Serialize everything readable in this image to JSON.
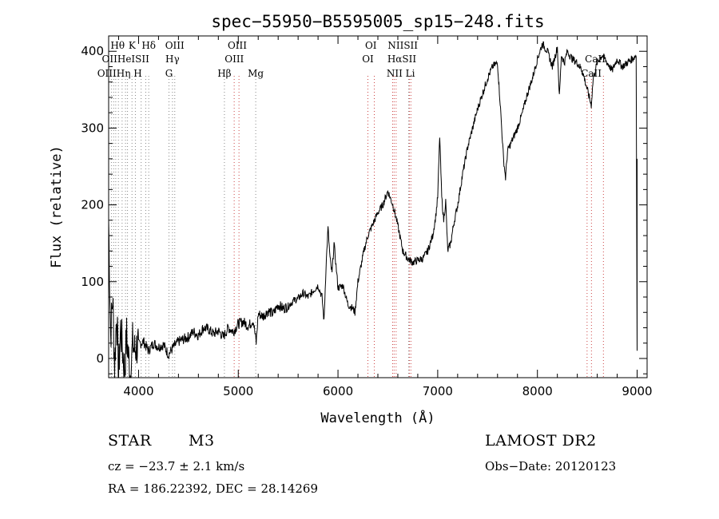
{
  "chart_data": {
    "type": "line",
    "title": "spec−55950−B5595005_sp15−248.fits",
    "xlabel": "Wavelength (Å)",
    "ylabel": "Flux (relative)",
    "xlim": [
      3700,
      9100
    ],
    "ylim": [
      -25,
      420
    ],
    "xticks": [
      4000,
      5000,
      6000,
      7000,
      8000,
      9000
    ],
    "yticks": [
      0,
      100,
      200,
      300,
      400
    ],
    "grid": false,
    "series": [
      {
        "x": [
          3700,
          3720,
          3740,
          3760,
          3780,
          3800,
          3820,
          3840,
          3860,
          3880,
          3900,
          3920,
          3940,
          3960,
          3980,
          4000,
          4050,
          4100,
          4150,
          4200,
          4250,
          4300,
          4350,
          4400,
          4450,
          4500,
          4550,
          4600,
          4650,
          4700,
          4750,
          4800,
          4850,
          4900,
          4950,
          5000,
          5050,
          5100,
          5150,
          5180,
          5200,
          5250,
          5300,
          5350,
          5400,
          5450,
          5500,
          5550,
          5600,
          5650,
          5700,
          5750,
          5800,
          5840,
          5860,
          5880,
          5900,
          5920,
          5940,
          5960,
          6000,
          6050,
          6100,
          6150,
          6170,
          6200,
          6230,
          6260,
          6300,
          6350,
          6400,
          6450,
          6500,
          6550,
          6580,
          6620,
          6650,
          6700,
          6750,
          6800,
          6850,
          6900,
          6950,
          6980,
          7000,
          7020,
          7040,
          7060,
          7080,
          7100,
          7130,
          7160,
          7200,
          7250,
          7300,
          7350,
          7400,
          7450,
          7500,
          7550,
          7600,
          7630,
          7660,
          7680,
          7700,
          7750,
          7800,
          7850,
          7900,
          7950,
          8000,
          8050,
          8100,
          8150,
          8200,
          8220,
          8240,
          8270,
          8300,
          8350,
          8400,
          8450,
          8500,
          8540,
          8560,
          8600,
          8650,
          8700,
          8750,
          8800,
          8850,
          8900,
          8950,
          8990,
          9000
        ],
        "y": [
          180,
          30,
          80,
          -10,
          60,
          -20,
          40,
          10,
          -15,
          30,
          0,
          -25,
          20,
          10,
          15,
          18,
          22,
          10,
          20,
          15,
          18,
          5,
          15,
          22,
          25,
          28,
          35,
          30,
          40,
          38,
          32,
          36,
          28,
          40,
          35,
          45,
          48,
          42,
          50,
          20,
          58,
          55,
          62,
          58,
          70,
          65,
          68,
          75,
          78,
          85,
          80,
          88,
          95,
          80,
          48,
          120,
          170,
          130,
          110,
          150,
          92,
          95,
          70,
          65,
          60,
          100,
          120,
          140,
          160,
          175,
          190,
          200,
          218,
          200,
          185,
          160,
          140,
          130,
          125,
          128,
          130,
          140,
          160,
          185,
          210,
          290,
          210,
          180,
          205,
          140,
          150,
          175,
          200,
          240,
          275,
          300,
          325,
          345,
          365,
          380,
          385,
          325,
          260,
          235,
          270,
          285,
          300,
          320,
          345,
          365,
          390,
          410,
          400,
          380,
          405,
          340,
          395,
          385,
          400,
          390,
          385,
          375,
          350,
          330,
          365,
          385,
          395,
          385,
          375,
          390,
          380,
          385,
          390,
          395,
          10
        ]
      }
    ],
    "lines": [
      {
        "x": 3727,
        "color": "#888888"
      },
      {
        "x": 3750,
        "color": "#888888"
      },
      {
        "x": 3771,
        "color": "#888888"
      },
      {
        "x": 3798,
        "color": "#888888"
      },
      {
        "x": 3835,
        "color": "#888888"
      },
      {
        "x": 3869,
        "color": "#888888"
      },
      {
        "x": 3889,
        "color": "#888888"
      },
      {
        "x": 3934,
        "color": "#888888"
      },
      {
        "x": 3968,
        "color": "#888888"
      },
      {
        "x": 4026,
        "color": "#888888"
      },
      {
        "x": 4072,
        "color": "#888888"
      },
      {
        "x": 4102,
        "color": "#888888"
      },
      {
        "x": 4305,
        "color": "#888888"
      },
      {
        "x": 4340,
        "color": "#888888"
      },
      {
        "x": 4363,
        "color": "#888888"
      },
      {
        "x": 4861,
        "color": "#888888"
      },
      {
        "x": 4959,
        "color": "#cc4444"
      },
      {
        "x": 5007,
        "color": "#cc4444"
      },
      {
        "x": 5175,
        "color": "#888888"
      },
      {
        "x": 6300,
        "color": "#cc4444"
      },
      {
        "x": 6364,
        "color": "#cc4444"
      },
      {
        "x": 6548,
        "color": "#cc4444"
      },
      {
        "x": 6563,
        "color": "#cc4444"
      },
      {
        "x": 6583,
        "color": "#cc4444"
      },
      {
        "x": 6708,
        "color": "#888888"
      },
      {
        "x": 6716,
        "color": "#cc4444"
      },
      {
        "x": 6731,
        "color": "#cc4444"
      },
      {
        "x": 8498,
        "color": "#cc4444"
      },
      {
        "x": 8542,
        "color": "#cc4444"
      },
      {
        "x": 8662,
        "color": "#cc4444"
      }
    ],
    "annotations": [
      {
        "text": "Hθ",
        "x": 3790,
        "row": 0
      },
      {
        "text": "K",
        "x": 3935,
        "row": 0
      },
      {
        "text": "Hδ",
        "x": 4102,
        "row": 0
      },
      {
        "text": "OIII",
        "x": 4363,
        "row": 0
      },
      {
        "text": "OIII",
        "x": 4990,
        "row": 0
      },
      {
        "text": "OI",
        "x": 6330,
        "row": 0
      },
      {
        "text": "NIISII",
        "x": 6650,
        "row": 0
      },
      {
        "text": "OIIHeISII",
        "x": 3870,
        "row": 1
      },
      {
        "text": "Hγ",
        "x": 4340,
        "row": 1
      },
      {
        "text": "OIII",
        "x": 4960,
        "row": 1
      },
      {
        "text": "OI",
        "x": 6300,
        "row": 1
      },
      {
        "text": "HαSII",
        "x": 6640,
        "row": 1
      },
      {
        "text": "CaII",
        "x": 8580,
        "row": 1
      },
      {
        "text": "OIIIHη H",
        "x": 3810,
        "row": 2
      },
      {
        "text": "G",
        "x": 4305,
        "row": 2
      },
      {
        "text": "Hβ",
        "x": 4861,
        "row": 2
      },
      {
        "text": "Mg",
        "x": 5175,
        "row": 2
      },
      {
        "text": "NII Li",
        "x": 6630,
        "row": 2
      },
      {
        "text": "CaII",
        "x": 8540,
        "row": 2
      }
    ]
  },
  "info": {
    "object_type": "STAR",
    "subclass": "M3",
    "survey": "LAMOST DR2",
    "redshift": "cz = −23.7 ± 2.1 km/s",
    "obs_date": "Obs−Date: 20120123",
    "coords": "RA = 186.22392, DEC =  28.14269"
  }
}
